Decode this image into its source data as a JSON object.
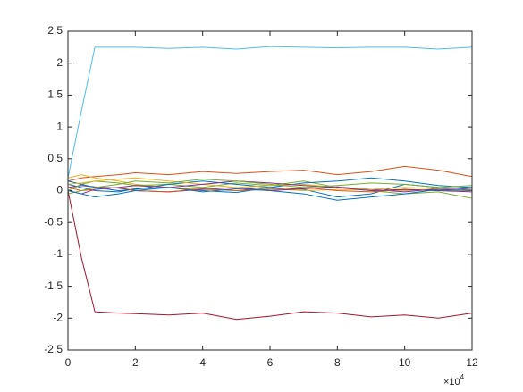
{
  "chart_data": {
    "type": "line",
    "x": [
      0,
      0.4,
      0.8,
      1.5,
      2,
      3,
      4,
      5,
      6,
      7,
      8,
      9,
      10,
      11,
      12
    ],
    "x_multiplier": {
      "base": "×10",
      "exponent": "4"
    },
    "series": [
      {
        "color": "#0072BD",
        "values": [
          0.1,
          0.05,
          0.0,
          -0.02,
          0.03,
          0.05,
          0.0,
          -0.03,
          0.05,
          0.02,
          -0.1,
          -0.05,
          0.1,
          0.05,
          0.02
        ]
      },
      {
        "color": "#D95319",
        "values": [
          0.15,
          0.2,
          0.22,
          0.25,
          0.28,
          0.25,
          0.3,
          0.27,
          0.3,
          0.32,
          0.25,
          0.3,
          0.38,
          0.32,
          0.22
        ]
      },
      {
        "color": "#EDB120",
        "values": [
          0.2,
          0.25,
          0.2,
          0.15,
          0.1,
          0.05,
          0.02,
          0.0,
          0.03,
          0.0,
          0.02,
          0.01,
          0.0,
          0.01,
          0.0
        ]
      },
      {
        "color": "#7E2F8E",
        "values": [
          0.05,
          0.08,
          0.06,
          0.04,
          0.0,
          -0.02,
          0.02,
          0.05,
          0.0,
          0.03,
          0.06,
          0.02,
          -0.02,
          0.03,
          0.05
        ]
      },
      {
        "color": "#77AC30",
        "values": [
          0.0,
          0.1,
          0.15,
          0.12,
          0.08,
          0.1,
          0.05,
          0.12,
          0.08,
          0.15,
          0.05,
          0.0,
          -0.05,
          -0.02,
          -0.12
        ]
      },
      {
        "color": "#4DBEEE",
        "values": [
          0.2,
          1.25,
          2.25,
          2.25,
          2.25,
          2.23,
          2.25,
          2.22,
          2.26,
          2.25,
          2.24,
          2.25,
          2.25,
          2.22,
          2.25
        ]
      },
      {
        "color": "#A2142F",
        "values": [
          0.0,
          -1.05,
          -1.9,
          -1.92,
          -1.93,
          -1.95,
          -1.92,
          -2.02,
          -1.97,
          -1.9,
          -1.92,
          -1.98,
          -1.95,
          -2.0,
          -1.92
        ]
      },
      {
        "color": "#0072BD",
        "values": [
          0.15,
          0.1,
          0.05,
          0.0,
          0.02,
          0.1,
          0.15,
          0.1,
          0.05,
          0.12,
          0.15,
          0.2,
          0.15,
          0.08,
          0.05
        ]
      },
      {
        "color": "#D95319",
        "values": [
          0.05,
          0.0,
          0.02,
          0.05,
          0.0,
          -0.02,
          0.03,
          0.0,
          0.02,
          0.05,
          0.0,
          -0.02,
          0.02,
          0.0,
          0.02
        ]
      },
      {
        "color": "#EDB120",
        "values": [
          0.1,
          0.12,
          0.15,
          0.18,
          0.2,
          0.15,
          0.1,
          0.05,
          0.08,
          0.1,
          0.05,
          0.02,
          0.05,
          0.03,
          0.0
        ]
      },
      {
        "color": "#7E2F8E",
        "values": [
          0.0,
          -0.05,
          0.02,
          0.05,
          0.08,
          0.05,
          0.1,
          0.15,
          0.12,
          0.08,
          0.05,
          0.0,
          0.02,
          0.0,
          -0.02
        ]
      },
      {
        "color": "#77AC30",
        "values": [
          -0.05,
          0.0,
          0.05,
          0.1,
          0.15,
          0.12,
          0.18,
          0.15,
          0.1,
          0.05,
          0.08,
          0.12,
          0.1,
          0.05,
          0.08
        ]
      },
      {
        "color": "#0072BD",
        "values": [
          0.0,
          -0.05,
          -0.1,
          -0.05,
          0.0,
          0.05,
          -0.02,
          0.03,
          0.0,
          -0.05,
          -0.15,
          -0.1,
          -0.05,
          0.02,
          0.0
        ]
      }
    ],
    "xlim": [
      0,
      12
    ],
    "xticks": [
      0,
      2,
      4,
      6,
      8,
      10,
      12
    ],
    "ylim": [
      -2.5,
      2.5
    ],
    "yticks": [
      -2.5,
      -2,
      -1.5,
      -1,
      -0.5,
      0,
      0.5,
      1,
      1.5,
      2,
      2.5
    ],
    "box": true
  }
}
